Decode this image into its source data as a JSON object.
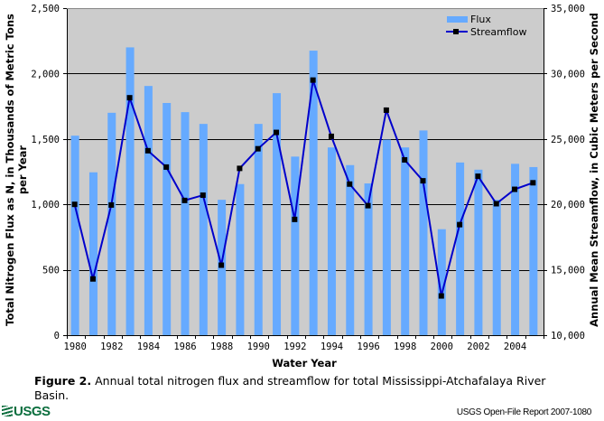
{
  "chart_data": {
    "type": "bar",
    "title": "",
    "xlabel": "Water Year",
    "ylabel": "Total Nitrogen Flux as N, in Thousands of Metric Tons per Year",
    "ylabel_lines": [
      "Total Nitrogen Flux as N, in Thousands of Metric Tons",
      "per Year"
    ],
    "y2label": "Annual Mean Streamflow, in Cubic Meters per Second",
    "ylim": [
      0,
      2500
    ],
    "y2lim": [
      10000,
      35000
    ],
    "y_ticks": [
      0,
      500,
      1000,
      1500,
      2000,
      2500
    ],
    "y_tick_labels": [
      "0",
      "500",
      "1,000",
      "1,500",
      "2,000",
      "2,500"
    ],
    "y2_ticks": [
      10000,
      15000,
      20000,
      25000,
      30000,
      35000
    ],
    "y2_tick_labels": [
      "10,000",
      "15,000",
      "20,000",
      "25,000",
      "30,000",
      "35,000"
    ],
    "x_tick_labels": [
      "1980",
      "1982",
      "1984",
      "1986",
      "1988",
      "1990",
      "1992",
      "1994",
      "1996",
      "1998",
      "2000",
      "2002",
      "2004"
    ],
    "grid": true,
    "legend_position": "top-right",
    "categories": [
      1980,
      1981,
      1982,
      1983,
      1984,
      1985,
      1986,
      1987,
      1988,
      1989,
      1990,
      1991,
      1992,
      1993,
      1994,
      1995,
      1996,
      1997,
      1998,
      1999,
      2000,
      2001,
      2002,
      2003,
      2004,
      2005
    ],
    "series": [
      {
        "name": "Flux",
        "type": "bar",
        "axis": "left",
        "color": "#66aaff",
        "values": [
          1525,
          1245,
          1700,
          2200,
          1905,
          1775,
          1705,
          1615,
          1035,
          1155,
          1615,
          1850,
          1365,
          2175,
          1435,
          1300,
          1160,
          1495,
          1435,
          1565,
          810,
          1320,
          1265,
          1035,
          1310,
          1285
        ]
      },
      {
        "name": "Streamflow",
        "type": "line",
        "axis": "right",
        "color": "#0000cc",
        "marker_color": "#000000",
        "values": [
          20000,
          14300,
          19950,
          28150,
          24100,
          22850,
          20300,
          20700,
          15350,
          22750,
          24250,
          25500,
          18850,
          29500,
          25200,
          21550,
          19900,
          27200,
          23400,
          21800,
          13000,
          18450,
          22150,
          20050,
          21150,
          21650
        ]
      }
    ]
  },
  "colors": {
    "plot_background": "#cccccc",
    "gridline": "#000000",
    "flux_bar": "#66aaff",
    "streamflow_line": "#0000cc",
    "streamflow_marker": "#000000",
    "logo_green": "#0b6e3e"
  },
  "caption": {
    "label": "Figure 2.",
    "text": " Annual total nitrogen flux and streamflow for total Mississippi-Atchafalaya River Basin."
  },
  "footer": {
    "logo_text": "USGS",
    "report": "USGS Open-File Report 2007-1080"
  }
}
